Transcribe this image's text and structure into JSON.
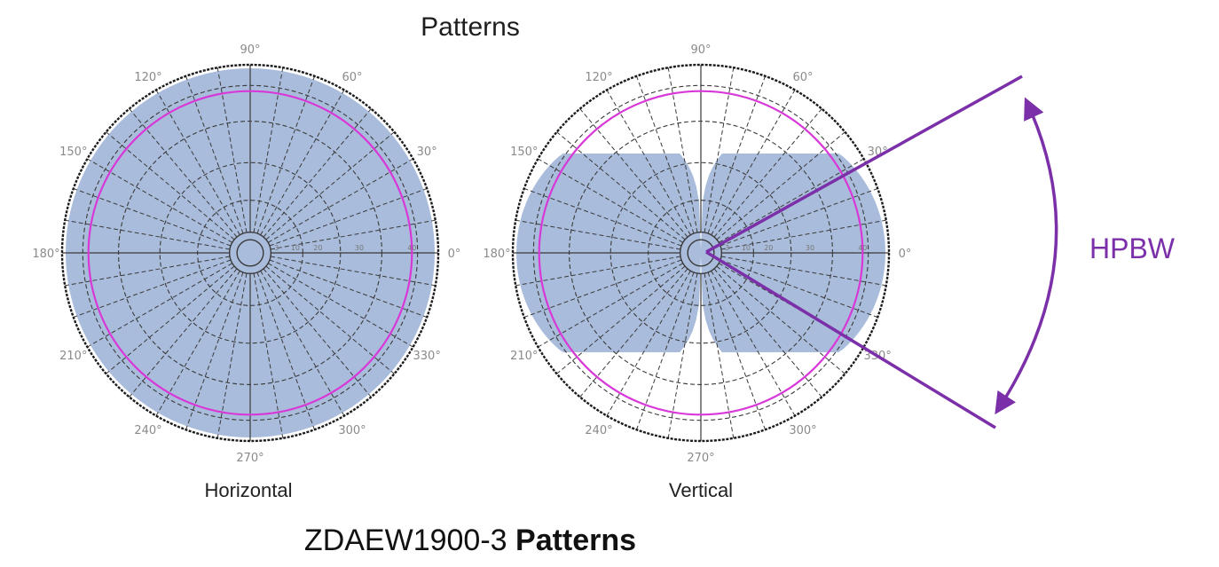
{
  "title": "Patterns",
  "footer": {
    "model": "ZDAEW1900-3",
    "suffix": "Patterns"
  },
  "colors": {
    "fill": "#a9bcdb",
    "reference_circle": "#d838d8",
    "annotation": "#7b2fa8",
    "grid": "#3a3a3a"
  },
  "chart_data": [
    {
      "type": "polar",
      "caption": "Horizontal",
      "angle_ticks": [
        "0°",
        "30°",
        "60°",
        "90°",
        "120°",
        "150°",
        "180°",
        "210°",
        "240°",
        "270°",
        "300°",
        "330°"
      ],
      "ring_labels": [
        "3",
        "10",
        "20",
        "30",
        "40"
      ],
      "pattern": "omnidirectional",
      "gain_db_by_angle": {
        "0": 0,
        "90": 0,
        "180": 0,
        "270": 0
      },
      "reference_circle_db": -3
    },
    {
      "type": "polar",
      "caption": "Vertical",
      "angle_ticks": [
        "0°",
        "30°",
        "60°",
        "90°",
        "120°",
        "150°",
        "180°",
        "210°",
        "240°",
        "270°",
        "300°",
        "330°"
      ],
      "ring_labels": [
        "3",
        "10",
        "20",
        "30",
        "40"
      ],
      "pattern": "bidirectional lobes at 0° and 180°",
      "lobe_peak_angles": [
        0,
        180
      ],
      "null_angles": [
        90,
        270
      ],
      "reference_circle_db": -3,
      "annotation": {
        "label": "HPBW"
      }
    }
  ]
}
